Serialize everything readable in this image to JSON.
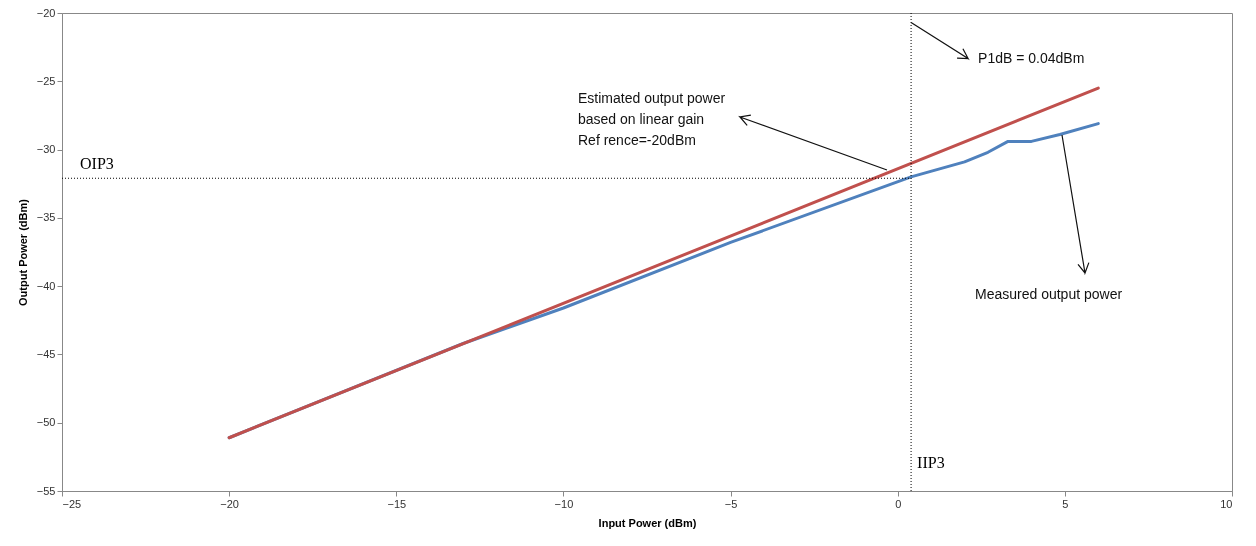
{
  "chart_data": {
    "type": "line",
    "xlabel": "Input Power (dBm)",
    "ylabel": "Output Power (dBm)",
    "xlim": [
      -25,
      10
    ],
    "xticks": [
      -25,
      -20,
      -15,
      -10,
      -5,
      0,
      5,
      10
    ],
    "ylim": [
      -55,
      -20
    ],
    "yticks": [
      -55,
      -50,
      -45,
      -40,
      -35,
      -30,
      -25,
      -20
    ],
    "grid": false,
    "line_style": "solid",
    "marker": "none",
    "series": [
      {
        "color": "#4f81bd",
        "x": [
          -20,
          -13,
          -10,
          -5,
          0.4,
          2,
          2.7,
          3.3,
          4,
          4.85,
          6
        ],
        "values": [
          -51.1,
          -44.2,
          -41.6,
          -36.8,
          -32.0,
          -30.9,
          -30.2,
          -29.4,
          -29.4,
          -28.9,
          -28.1
        ]
      },
      {
        "color": "#c0504d",
        "x": [
          -20,
          6
        ],
        "values": [
          -51.1,
          -25.5
        ]
      }
    ],
    "ref_lines": [
      {
        "axis": "x",
        "value": 0.4,
        "label": "IIP3",
        "color": "#000000",
        "line_style": "dotted"
      },
      {
        "axis": "y",
        "value": -32.1,
        "label": "OIP3",
        "color": "#000000",
        "line_style": "dotted"
      }
    ],
    "annotations": [
      {
        "text": "P1dB = 0.04dBm",
        "x": 0.4,
        "y": -20.7
      },
      "Estimated output power\n based on linear gain\nRef rence=-20dBm",
      "Measured output power"
    ]
  }
}
